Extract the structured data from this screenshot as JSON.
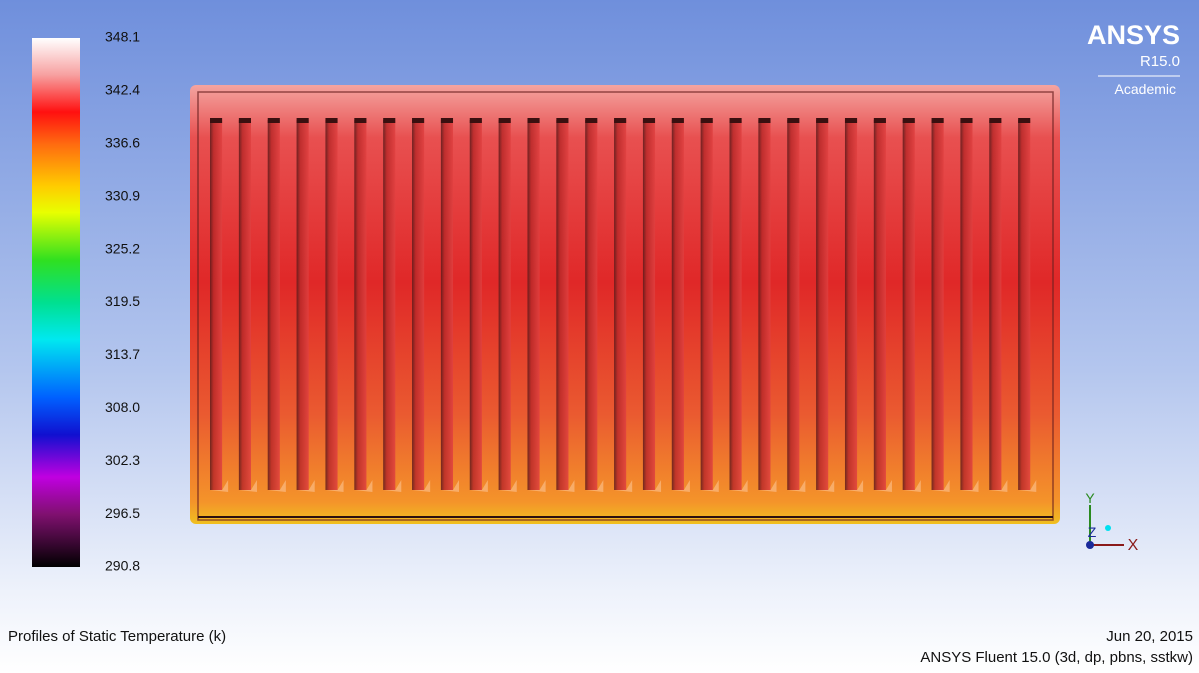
{
  "colorbar": {
    "labels": [
      "348.1",
      "342.4",
      "336.6",
      "330.9",
      "325.2",
      "319.5",
      "313.7",
      "308.0",
      "302.3",
      "296.5",
      "290.8"
    ]
  },
  "logo": {
    "brand": "ANSYS",
    "release": "R15.0",
    "edition": "Academic"
  },
  "triad": {
    "y": "Y",
    "z": "Z",
    "x": "X"
  },
  "footer": {
    "title": "Profiles of Static Temperature (k)",
    "date": "Jun 20, 2015",
    "solver": "ANSYS Fluent 15.0 (3d, dp, pbns, sstkw)"
  }
}
